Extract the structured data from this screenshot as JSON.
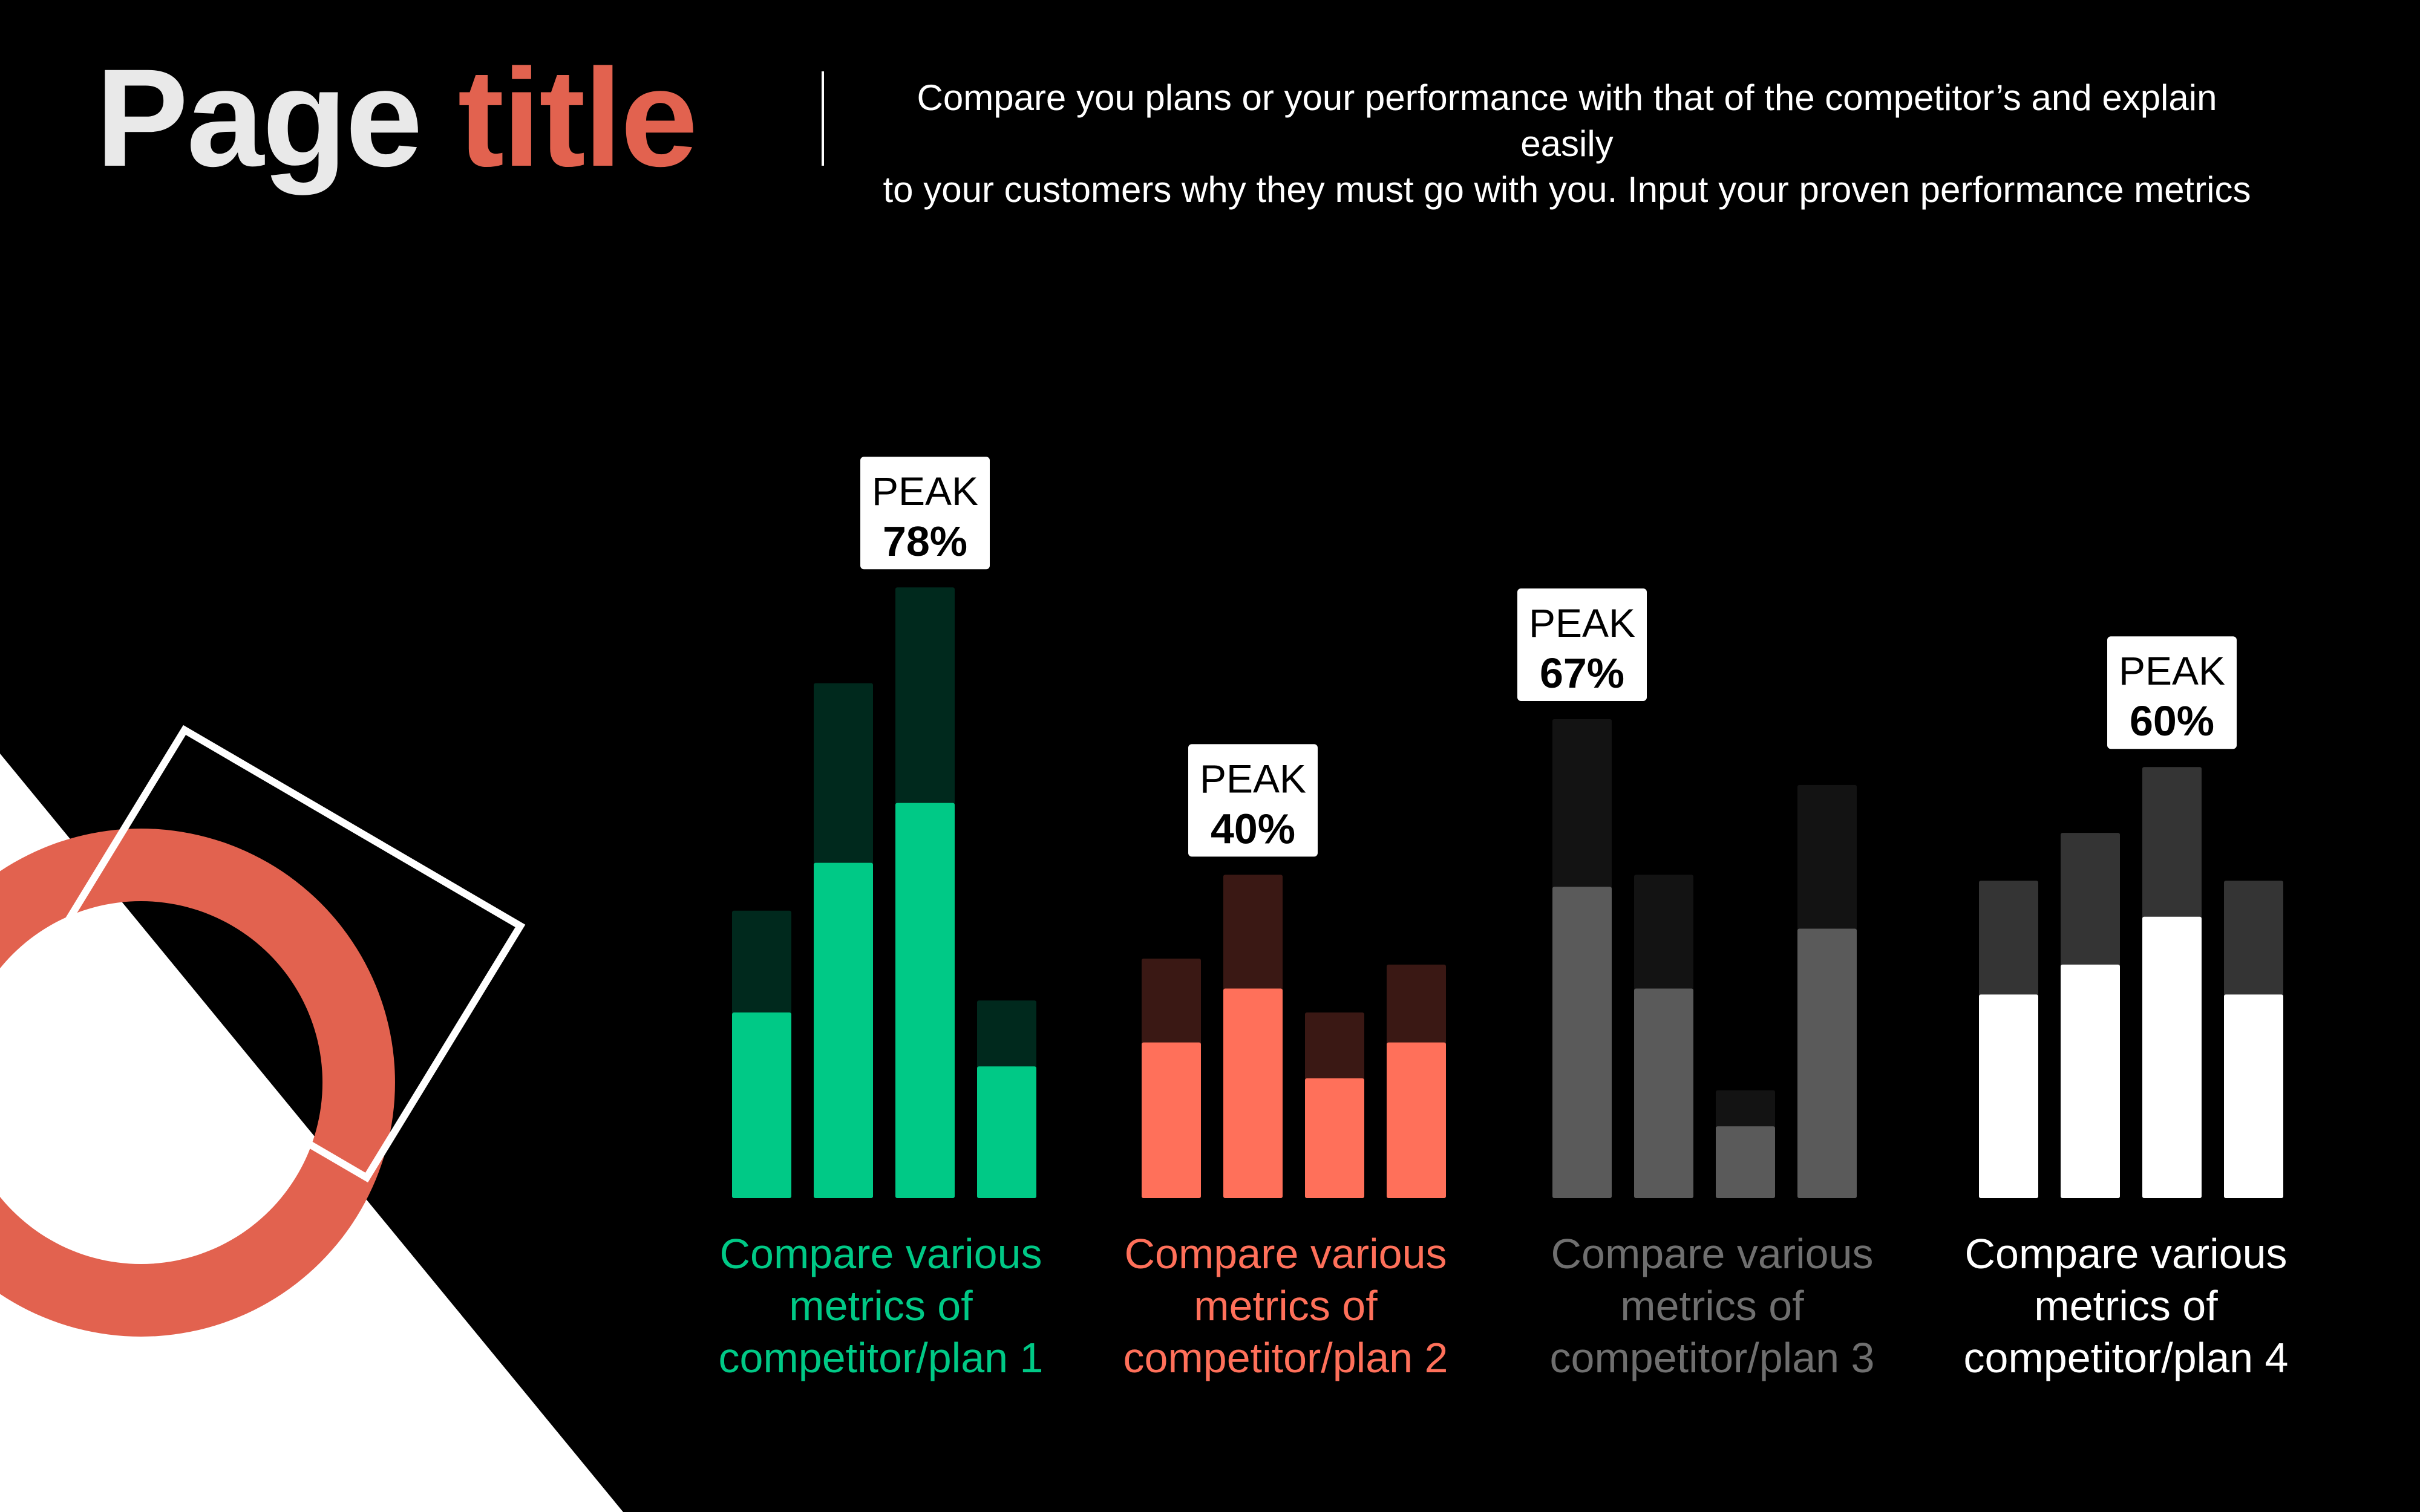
{
  "title": {
    "part1": "Page",
    "part2": "title"
  },
  "description": {
    "line1": "Compare you plans or your performance with that of the competitor’s and explain easily",
    "line2": "to your customers why they must go with you. Input your proven performance metrics"
  },
  "colors": {
    "background": "#000000",
    "title_white": "#e9e9e9",
    "title_accent": "#e2624f",
    "ring": "#e2624f",
    "green_main": "#00c986",
    "green_dark": "#00291d",
    "orange_main": "#ff705a",
    "orange_dark": "#3a1814",
    "gray_main": "#5a5a5a",
    "gray_dark": "#131313",
    "white_main": "#ffffff",
    "white_dark": "#343434"
  },
  "chart_data": {
    "type": "bar",
    "stacked": true,
    "grid": false,
    "legend": "none",
    "groups": [
      {
        "name": "Compare various metrics of competitor/plan 1",
        "label_lines": [
          "Compare various",
          "metrics of",
          "competitor/plan 1"
        ],
        "peak_word": "PEAK",
        "peak_value": "78%",
        "peak_bar_index": 2,
        "main_color": "#00c986",
        "bg_color": "#00291d",
        "bars": [
          {
            "value": 31,
            "total": 48
          },
          {
            "value": 56,
            "total": 86
          },
          {
            "value": 66,
            "total": 102
          },
          {
            "value": 22,
            "total": 33
          }
        ]
      },
      {
        "name": "Compare various metrics of competitor/plan 2",
        "label_lines": [
          "Compare various",
          "metrics of",
          "competitor/plan 2"
        ],
        "peak_word": "PEAK",
        "peak_value": "40%",
        "peak_bar_index": 1,
        "main_color": "#ff705a",
        "bg_color": "#3a1814",
        "bars": [
          {
            "value": 26,
            "total": 40
          },
          {
            "value": 35,
            "total": 54
          },
          {
            "value": 20,
            "total": 31
          },
          {
            "value": 26,
            "total": 39
          }
        ]
      },
      {
        "name": "Compare various metrics of competitor/plan 3",
        "label_lines": [
          "Compare various",
          "metrics of",
          "competitor/plan 3"
        ],
        "peak_word": "PEAK",
        "peak_value": "67%",
        "peak_bar_index": 0,
        "main_color": "#5a5a5a",
        "bg_color": "#131313",
        "bars": [
          {
            "value": 52,
            "total": 80
          },
          {
            "value": 35,
            "total": 54
          },
          {
            "value": 12,
            "total": 18
          },
          {
            "value": 45,
            "total": 69
          }
        ]
      },
      {
        "name": "Compare various metrics of competitor/plan 4",
        "label_lines": [
          "Compare various",
          "metrics of",
          "competitor/plan 4"
        ],
        "peak_word": "PEAK",
        "peak_value": "60%",
        "peak_bar_index": 2,
        "main_color": "#ffffff",
        "bg_color": "#343434",
        "bars": [
          {
            "value": 34,
            "total": 53
          },
          {
            "value": 39,
            "total": 61
          },
          {
            "value": 47,
            "total": 72
          },
          {
            "value": 34,
            "total": 53
          }
        ]
      }
    ]
  }
}
